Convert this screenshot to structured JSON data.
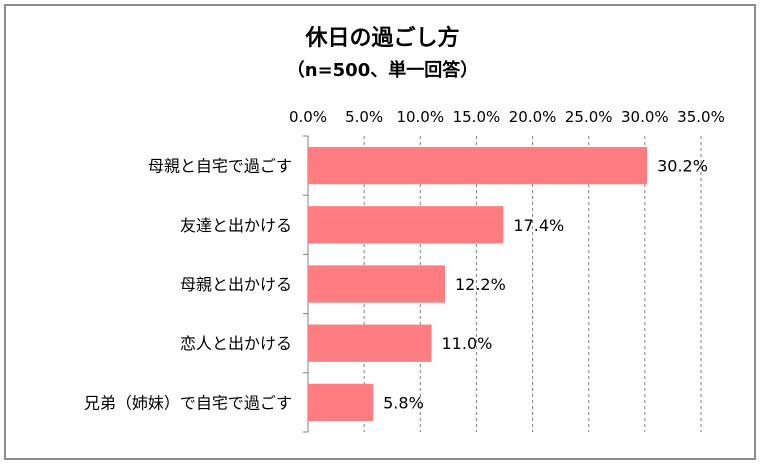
{
  "chart_data": {
    "type": "bar",
    "orientation": "horizontal",
    "title": "休日の過ごし方",
    "subtitle": "（n=500、単一回答）",
    "categories": [
      "母親と自宅で過ごす",
      "友達と出かける",
      "母親と出かける",
      "恋人と出かける",
      "兄弟（姉妹）で自宅で過ごす"
    ],
    "values": [
      30.2,
      17.4,
      12.2,
      11.0,
      5.8
    ],
    "data_labels": [
      "30.2%",
      "17.4%",
      "12.2%",
      "11.0%",
      "5.8%"
    ],
    "xlim": [
      0,
      35
    ],
    "x_ticks": [
      0,
      5,
      10,
      15,
      20,
      25,
      30,
      35
    ],
    "x_tick_labels": [
      "0.0%",
      "5.0%",
      "10.0%",
      "15.0%",
      "20.0%",
      "25.0%",
      "30.0%",
      "35.0%"
    ],
    "x_axis_position": "top",
    "grid": "vertical dashed",
    "legend": "none",
    "bar_color": "#ff7c80",
    "grid_color": "#7f7f7f"
  }
}
